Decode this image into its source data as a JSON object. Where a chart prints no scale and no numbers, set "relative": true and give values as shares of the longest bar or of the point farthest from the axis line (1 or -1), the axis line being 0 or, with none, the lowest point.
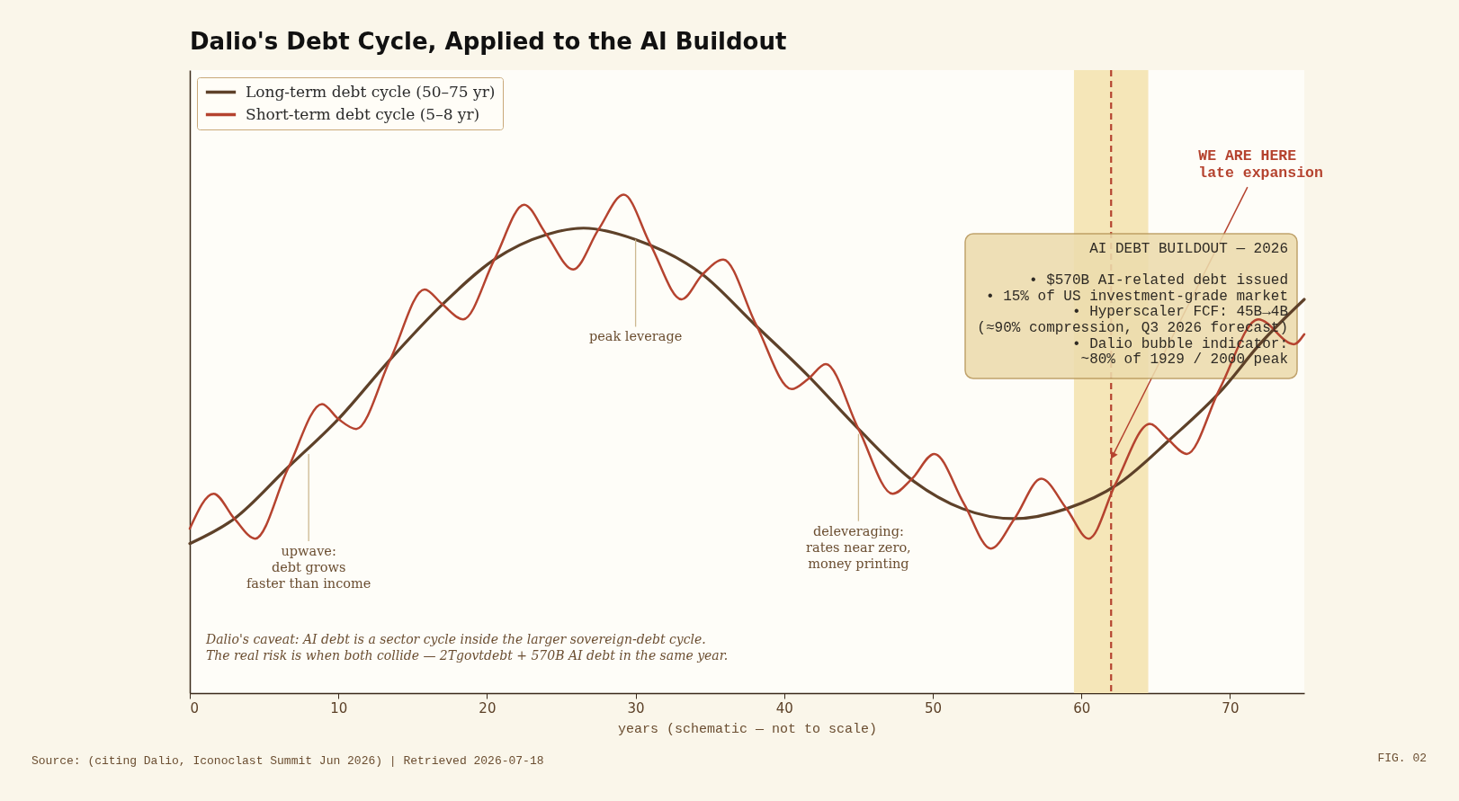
{
  "chart_data": {
    "type": "line",
    "title": "Dalio's Debt Cycle, Applied to the AI Buildout",
    "xlabel": "years (schematic — not to scale)",
    "relative": true,
    "xlim": [
      0,
      75
    ],
    "xticks": [
      0,
      10,
      20,
      30,
      40,
      50,
      60,
      70
    ],
    "tick_labels": "x",
    "legend": "top left",
    "series": [
      {
        "name": "Long-term debt cycle (50–75 yr)",
        "color": "#5e4129",
        "x": [
          0,
          3,
          6.5,
          10,
          13.5,
          17,
          20.5,
          24,
          26.5,
          30,
          34.5,
          38,
          41.5,
          45,
          48.5,
          52,
          55.5,
          59,
          62.5,
          66,
          69.5,
          72,
          75
        ],
        "values": [
          0.3,
          0.35,
          0.45,
          0.55,
          0.67,
          0.78,
          0.87,
          0.92,
          0.933,
          0.91,
          0.84,
          0.74,
          0.64,
          0.53,
          0.43,
          0.37,
          0.35,
          0.37,
          0.42,
          0.51,
          0.61,
          0.7,
          0.79
        ]
      },
      {
        "name": "Short-term debt cycle (5–8 yr)",
        "color": "#b5432f",
        "x": [
          0,
          1.6,
          3,
          4.4,
          6.6,
          8.9,
          10,
          11.2,
          13.5,
          15.8,
          17,
          18.4,
          20.5,
          22.5,
          24,
          25.8,
          27.5,
          29.2,
          31,
          33.1,
          34.5,
          35.9,
          38.1,
          40.5,
          41.6,
          42.8,
          45,
          47.3,
          48.6,
          50.1,
          52.1,
          53.9,
          55.5,
          57.3,
          59,
          60.5,
          62.3,
          64.6,
          65.8,
          67.1,
          69.3,
          71.9,
          74.3,
          75
        ],
        "values": [
          0.33,
          0.4,
          0.35,
          0.31,
          0.45,
          0.58,
          0.55,
          0.53,
          0.67,
          0.81,
          0.78,
          0.75,
          0.87,
          0.98,
          0.92,
          0.85,
          0.93,
          1.0,
          0.9,
          0.79,
          0.84,
          0.87,
          0.74,
          0.61,
          0.63,
          0.66,
          0.53,
          0.4,
          0.43,
          0.48,
          0.38,
          0.29,
          0.35,
          0.43,
          0.37,
          0.31,
          0.42,
          0.54,
          0.51,
          0.48,
          0.61,
          0.75,
          0.7,
          0.72
        ]
      }
    ],
    "bands": [
      {
        "axis": "x",
        "from": 59.5,
        "to": 64.5,
        "color": "#f5e6b8"
      }
    ],
    "ref_lines": [
      {
        "axis": "x",
        "value": 62,
        "color": "#b5432f",
        "line_style": "dashed"
      }
    ],
    "annotations": [
      {
        "text": "upwave:\ndebt grows\nfaster than income",
        "x": 8,
        "y": 0.48
      },
      {
        "text": "peak leverage",
        "x": 30,
        "y": 0.91
      },
      {
        "text": "deleveraging:\nrates near zero,\nmoney printing",
        "x": 45,
        "y": 0.52
      },
      {
        "text": "WE ARE HERE\nlate expansion",
        "x": 62,
        "y": 0.47
      },
      "AI DEBT BUILDOUT — 2026\n\n• $570B AI-related debt issued\n• 15% of US investment-grade market\n• Hyperscaler FCF: 45B→4B\n(≈90% compression, Q3 2026 forecast)\n• Dalio bubble indicator:\n~80% of 1929 / 2000 peak",
      "Dalio's caveat: AI debt is a sector cycle inside the larger sovereign-debt cycle.\nThe real risk is when both collide — 2Tgovtdebt + 570B AI debt in the same year.",
      "Source: (citing Dalio, Iconoclast Summit Jun 2026)  |  Retrieved 2026-07-18",
      "FIG. 02"
    ]
  }
}
